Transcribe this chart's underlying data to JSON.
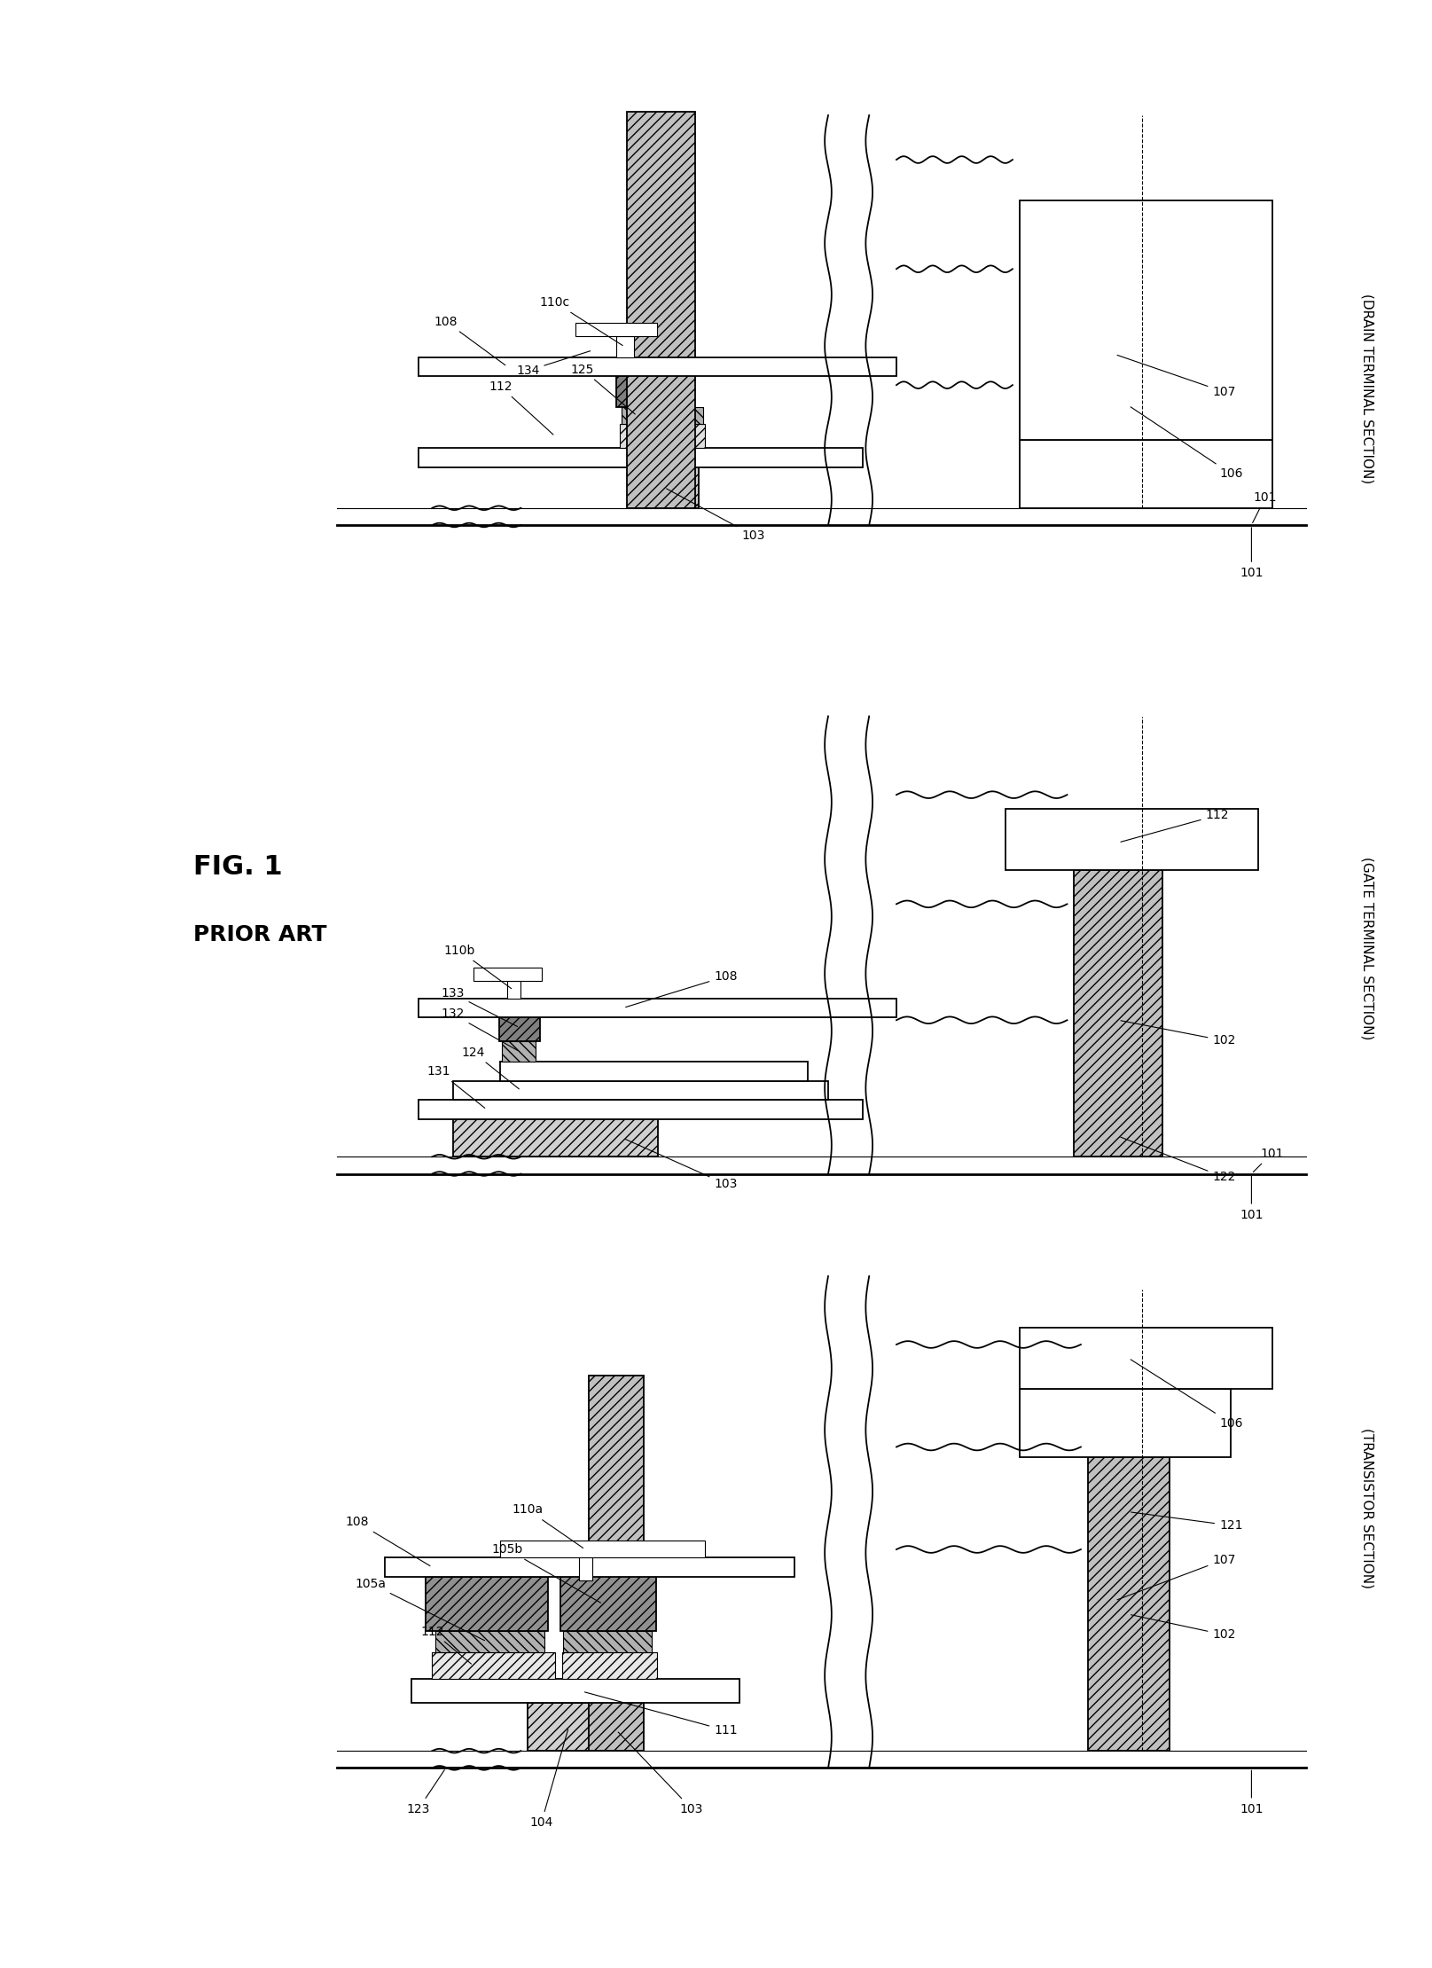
{
  "title": "FIG. 1",
  "subtitle": "PRIOR ART",
  "bg": "#ffffff",
  "fw": 20.72,
  "fh": 28.56,
  "lw_thin": 0.8,
  "lw_med": 1.3,
  "lw_thick": 2.0,
  "hatch_diag": "///",
  "hatch_back": "\\\\\\",
  "hatch_cross": "xxx",
  "label_fs": 10,
  "title_fs": 18,
  "rot_label_fs": 11,
  "section_labels": [
    "(DRAIN TERMINAL SECTION)",
    "(GATE TERMINAL SECTION)",
    "(TRANSISTOR SECTION)"
  ]
}
